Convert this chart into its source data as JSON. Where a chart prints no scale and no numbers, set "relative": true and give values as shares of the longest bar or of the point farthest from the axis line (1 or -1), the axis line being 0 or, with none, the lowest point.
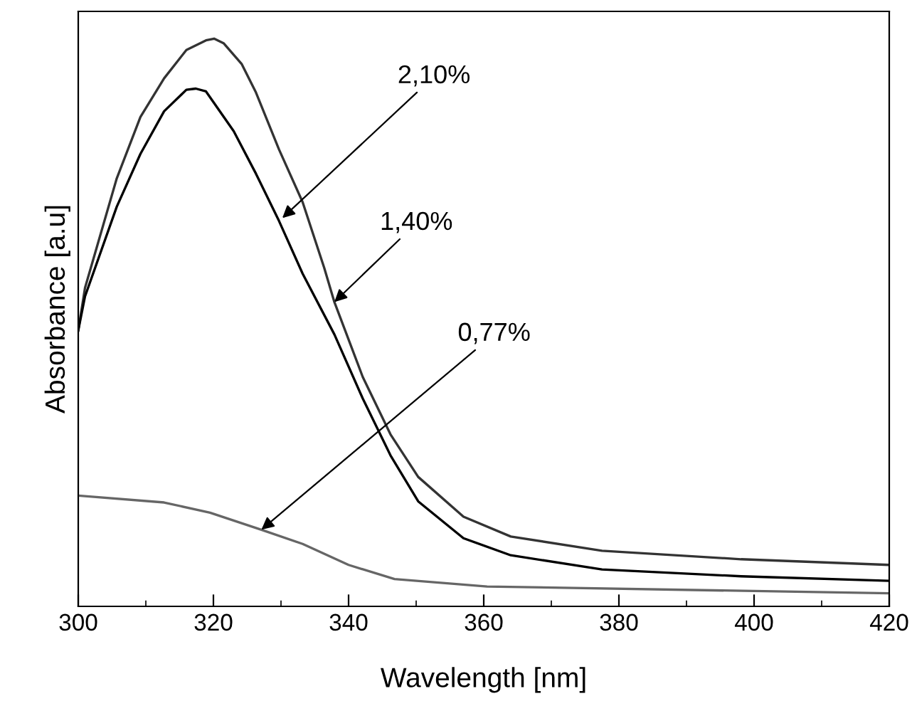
{
  "chart_data": {
    "type": "line",
    "relative": true,
    "xlabel": "Wavelength [nm]",
    "ylabel": "Absorbance [a.u]",
    "xlim": [
      300,
      420
    ],
    "xticks": [
      300,
      320,
      340,
      360,
      380,
      400,
      420
    ],
    "grid": false,
    "legend": false,
    "marker": "none",
    "line_style": "solid",
    "series": [
      {
        "color": "#333333",
        "x": [
          300,
          301.0,
          305.7,
          309.2,
          312.7,
          316.0,
          318.9,
          320.1,
          321.5,
          324.2,
          326.3,
          329.7,
          333.2,
          336.4,
          337.9,
          342.1,
          346.2,
          350.3,
          357.0,
          364.0,
          377.5,
          398.1,
          420
        ],
        "values": [
          0.486,
          0.561,
          0.754,
          0.862,
          0.93,
          0.98,
          0.997,
          1,
          0.992,
          0.955,
          0.905,
          0.805,
          0.712,
          0.596,
          0.536,
          0.404,
          0.303,
          0.228,
          0.158,
          0.123,
          0.098,
          0.083,
          0.073
        ]
      },
      {
        "color": "#000000",
        "x": [
          300,
          301.0,
          305.7,
          309.2,
          312.7,
          316.0,
          317.4,
          318.9,
          323.0,
          326.3,
          329.7,
          333.2,
          337.9,
          342.1,
          346.2,
          350.3,
          357.0,
          364.0,
          377.5,
          398.1,
          420
        ],
        "values": [
          0.486,
          0.546,
          0.704,
          0.797,
          0.872,
          0.91,
          0.912,
          0.907,
          0.837,
          0.762,
          0.679,
          0.586,
          0.479,
          0.366,
          0.266,
          0.185,
          0.12,
          0.09,
          0.065,
          0.053,
          0.045
        ]
      },
      {
        "color": "#666666",
        "x": [
          300,
          312.7,
          319.5,
          327.1,
          333.2,
          340.0,
          346.8,
          360.5,
          420
        ],
        "values": [
          0.195,
          0.183,
          0.165,
          0.135,
          0.11,
          0.073,
          0.048,
          0.035,
          0.023
        ]
      }
    ],
    "annotations": [
      {
        "text": "2,10%",
        "x": 330.2,
        "y": 0.684
      },
      {
        "text": "1,40%",
        "x": 337.9,
        "y": 0.536
      },
      {
        "text": "0,77%",
        "x": 327.1,
        "y": 0.135
      }
    ]
  }
}
